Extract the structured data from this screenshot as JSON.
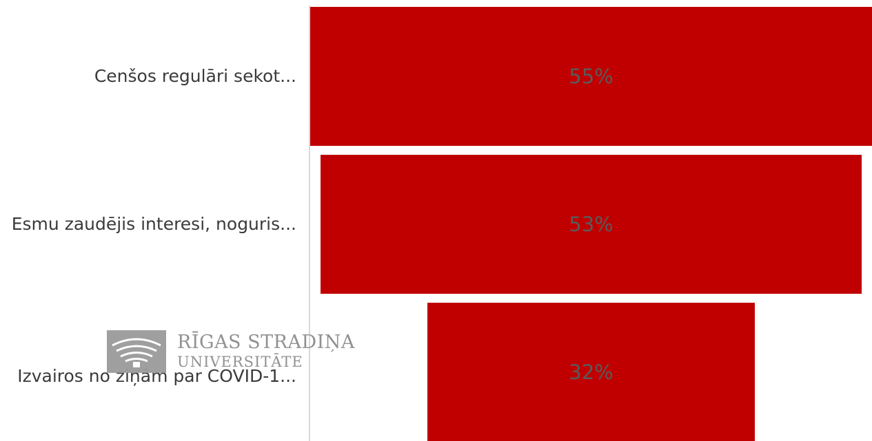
{
  "chart_data": {
    "type": "bar",
    "orientation": "horizontal",
    "layout": "funnel",
    "categories": [
      "Cenšos regulāri sekot...",
      "Esmu zaudējis interesi, noguris...",
      "Izvairos no ziņām par COVID-1..."
    ],
    "values": [
      55,
      53,
      32
    ],
    "value_labels": [
      "55%",
      "53%",
      "32%"
    ],
    "unit": "%",
    "title": "",
    "xlabel": "",
    "ylabel": "",
    "grid": false,
    "legend": "none",
    "colors": {
      "bar": "#c00000",
      "value_text": "#5a5a5a",
      "label_text": "#3a3a3a",
      "axis": "#d9d9d9"
    }
  },
  "watermark": {
    "line1": "RĪGAS STRADIŅA",
    "line2": "UNIVERSITĀTE",
    "icon": "rsu-logo-icon"
  }
}
